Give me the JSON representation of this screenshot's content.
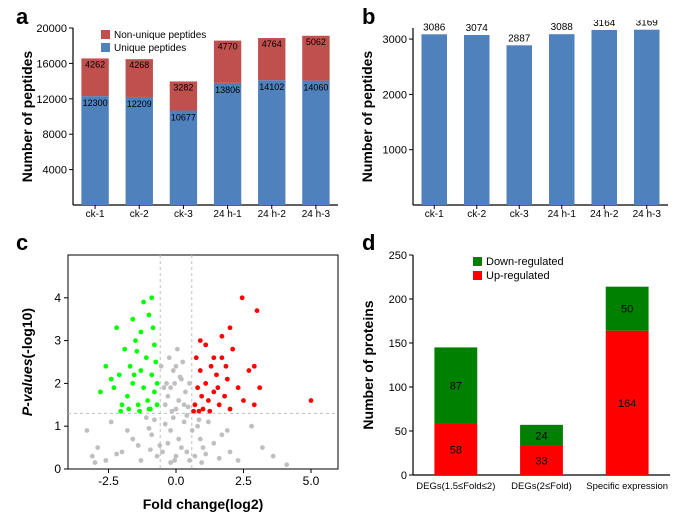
{
  "panel_labels": {
    "a": "a",
    "b": "b",
    "c": "c",
    "d": "d"
  },
  "chart_a": {
    "type": "stacked-bar",
    "title": "",
    "ylabel": "Number of peptides",
    "categories": [
      "ck-1",
      "ck-2",
      "ck-3",
      "24 h-1",
      "24 h-2",
      "24 h-3"
    ],
    "series": [
      {
        "name": "Unique peptides",
        "values": [
          12300,
          12209,
          10677,
          13806,
          14102,
          14060
        ],
        "color": "#4f81bd"
      },
      {
        "name": "Non-unique peptides",
        "values": [
          4262,
          4268,
          3282,
          4770,
          4764,
          5062
        ],
        "color": "#c0504d"
      }
    ],
    "legend_order": [
      "Non-unique peptides",
      "Unique peptides"
    ],
    "bar_value_labels": {
      "lower": [
        "12300",
        "12209",
        "10677",
        "13806",
        "14102",
        "14060"
      ],
      "upper": [
        "4262",
        "4268",
        "3282",
        "4770",
        "4764",
        "5062"
      ]
    },
    "ylim": [
      0,
      20000
    ],
    "yticks": [
      4000,
      8000,
      12000,
      16000,
      20000
    ],
    "axis_color": "#000000",
    "tick_fontsize": 11,
    "label_fontsize": 14
  },
  "chart_b": {
    "type": "bar",
    "ylabel": "Number of peptides",
    "categories": [
      "ck-1",
      "ck-2",
      "ck-3",
      "24 h-1",
      "24 h-2",
      "24 h-3"
    ],
    "values": [
      3086,
      3074,
      2887,
      3088,
      3164,
      3169
    ],
    "bar_color": "#4f81bd",
    "value_labels": [
      "3086",
      "3074",
      "2887",
      "3088",
      "3164",
      "3169"
    ],
    "ylim": [
      0,
      3200
    ],
    "yticks": [
      1000,
      2000,
      3000
    ],
    "axis_color": "#000000",
    "tick_fontsize": 11,
    "label_fontsize": 14
  },
  "chart_c": {
    "type": "scatter",
    "xlabel": "Fold change(log2)",
    "ylabel": "P-values(-log10)",
    "ylabel_italic_part": "P-values",
    "xlim": [
      -4,
      6
    ],
    "xticks": [
      -2.5,
      0.0,
      2.5,
      5.0
    ],
    "ylim": [
      0,
      5
    ],
    "yticks": [
      0,
      1,
      2,
      3,
      4
    ],
    "hline_y": 1.3,
    "vlines_x": [
      -0.585,
      0.585
    ],
    "guide_color": "#bfbfbf",
    "point_colors": {
      "ns": "#bfbfbf",
      "down": "#00ff00",
      "up": "#ff0000"
    },
    "points_ns": [
      [
        -3.1,
        0.3
      ],
      [
        -2.9,
        0.5
      ],
      [
        -3.3,
        0.9
      ],
      [
        -2.4,
        1.1
      ],
      [
        -2.0,
        0.4
      ],
      [
        -1.6,
        0.7
      ],
      [
        -1.3,
        0.2
      ],
      [
        -1.1,
        1.2
      ],
      [
        -0.9,
        0.8
      ],
      [
        -0.7,
        0.3
      ],
      [
        -0.5,
        0.4
      ],
      [
        -0.3,
        0.6
      ],
      [
        -0.2,
        0.9
      ],
      [
        -0.1,
        1.2
      ],
      [
        0.0,
        0.3
      ],
      [
        0.1,
        0.7
      ],
      [
        0.2,
        0.5
      ],
      [
        0.3,
        1.1
      ],
      [
        0.4,
        0.4
      ],
      [
        0.5,
        0.2
      ],
      [
        0.6,
        0.9
      ],
      [
        0.7,
        0.3
      ],
      [
        0.8,
        1.0
      ],
      [
        0.9,
        0.7
      ],
      [
        1.0,
        0.5
      ],
      [
        1.2,
        1.1
      ],
      [
        1.4,
        0.6
      ],
      [
        1.7,
        0.8
      ],
      [
        2.0,
        0.4
      ],
      [
        2.3,
        0.2
      ],
      [
        2.8,
        1.0
      ],
      [
        3.2,
        0.5
      ],
      [
        -0.4,
        1.5
      ],
      [
        -0.3,
        1.7
      ],
      [
        -0.2,
        1.9
      ],
      [
        0.0,
        1.4
      ],
      [
        0.1,
        1.6
      ],
      [
        0.2,
        2.1
      ],
      [
        0.3,
        1.5
      ],
      [
        -0.1,
        2.3
      ],
      [
        -0.35,
        2.0
      ],
      [
        0.35,
        1.8
      ],
      [
        0.25,
        2.5
      ],
      [
        -0.25,
        2.6
      ],
      [
        0.05,
        2.8
      ],
      [
        -0.15,
        1.35
      ],
      [
        0.15,
        2.15
      ],
      [
        0.45,
        1.45
      ],
      [
        -0.45,
        1.9
      ],
      [
        -0.55,
        2.4
      ],
      [
        0.5,
        2.0
      ],
      [
        -2.2,
        0.35
      ],
      [
        -1.8,
        0.9
      ],
      [
        -1.4,
        0.55
      ],
      [
        1.1,
        0.35
      ],
      [
        1.6,
        0.25
      ],
      [
        1.9,
        0.9
      ],
      [
        -0.6,
        0.55
      ],
      [
        -0.8,
        1.15
      ],
      [
        0.85,
        1.15
      ],
      [
        -0.05,
        0.2
      ],
      [
        -2.6,
        0.2
      ],
      [
        3.6,
        0.3
      ],
      [
        4.1,
        0.1
      ],
      [
        -3.0,
        0.15
      ],
      [
        -0.95,
        0.45
      ],
      [
        0.95,
        0.15
      ],
      [
        -1.0,
        0.95
      ],
      [
        -0.2,
        0.15
      ],
      [
        0.4,
        1.25
      ],
      [
        -0.4,
        1.05
      ],
      [
        -0.05,
        2.0
      ],
      [
        0.0,
        2.4
      ]
    ],
    "points_down": [
      [
        -0.7,
        1.5
      ],
      [
        -0.8,
        1.8
      ],
      [
        -0.9,
        2.2
      ],
      [
        -1.0,
        1.4
      ],
      [
        -1.1,
        2.6
      ],
      [
        -1.2,
        1.9
      ],
      [
        -1.3,
        2.3
      ],
      [
        -1.4,
        1.5
      ],
      [
        -1.5,
        3.0
      ],
      [
        -1.6,
        2.0
      ],
      [
        -1.7,
        2.4
      ],
      [
        -1.8,
        1.7
      ],
      [
        -1.9,
        2.8
      ],
      [
        -2.0,
        1.5
      ],
      [
        -2.1,
        2.2
      ],
      [
        -2.2,
        3.3
      ],
      [
        -2.3,
        1.9
      ],
      [
        -2.4,
        2.1
      ],
      [
        -1.0,
        3.6
      ],
      [
        -1.3,
        3.2
      ],
      [
        -0.8,
        2.9
      ],
      [
        -1.6,
        3.5
      ],
      [
        -0.9,
        4.0
      ],
      [
        -1.2,
        3.9
      ],
      [
        -2.6,
        2.4
      ],
      [
        -2.8,
        1.8
      ],
      [
        -0.7,
        2.0
      ],
      [
        -0.75,
        2.5
      ],
      [
        -1.05,
        1.6
      ],
      [
        -1.35,
        1.35
      ],
      [
        -0.85,
        3.3
      ],
      [
        -1.45,
        2.75
      ],
      [
        -1.75,
        1.4
      ],
      [
        -2.05,
        1.35
      ],
      [
        -0.95,
        1.4
      ],
      [
        -1.55,
        2.2
      ]
    ],
    "points_up": [
      [
        0.7,
        1.5
      ],
      [
        0.8,
        1.9
      ],
      [
        0.9,
        2.3
      ],
      [
        1.0,
        1.4
      ],
      [
        1.1,
        2.0
      ],
      [
        1.2,
        1.6
      ],
      [
        1.3,
        2.4
      ],
      [
        1.4,
        1.8
      ],
      [
        1.5,
        2.2
      ],
      [
        1.6,
        1.5
      ],
      [
        1.7,
        2.6
      ],
      [
        1.8,
        1.7
      ],
      [
        1.9,
        2.1
      ],
      [
        2.0,
        1.4
      ],
      [
        2.1,
        2.8
      ],
      [
        2.3,
        1.9
      ],
      [
        2.5,
        1.6
      ],
      [
        2.7,
        2.3
      ],
      [
        2.9,
        1.5
      ],
      [
        3.1,
        1.9
      ],
      [
        0.75,
        2.6
      ],
      [
        0.9,
        3.0
      ],
      [
        1.1,
        2.9
      ],
      [
        1.4,
        2.6
      ],
      [
        1.7,
        3.1
      ],
      [
        2.0,
        3.3
      ],
      [
        2.9,
        2.4
      ],
      [
        2.45,
        4.0
      ],
      [
        3.0,
        3.7
      ],
      [
        5.0,
        1.6
      ],
      [
        0.65,
        1.35
      ],
      [
        0.85,
        1.35
      ],
      [
        1.25,
        1.35
      ],
      [
        1.55,
        1.9
      ],
      [
        1.85,
        2.4
      ],
      [
        0.95,
        1.7
      ]
    ]
  },
  "chart_d": {
    "type": "stacked-bar",
    "ylabel": "Number of proteins",
    "categories": [
      "DEGs(1.5≤Fold≤2)",
      "DEGs(2≤Fold)",
      "Specific expression"
    ],
    "series": [
      {
        "name": "Up-regulated",
        "values": [
          58,
          33,
          164
        ],
        "color": "#ff0000"
      },
      {
        "name": "Down-regulated",
        "values": [
          87,
          24,
          50
        ],
        "color": "#008000"
      }
    ],
    "legend_order": [
      "Down-regulated",
      "Up-regulated"
    ],
    "bar_value_labels": {
      "lower": [
        "58",
        "33",
        "164"
      ],
      "upper": [
        "87",
        "24",
        "50"
      ]
    },
    "ylim": [
      0,
      250
    ],
    "yticks": [
      0,
      50,
      100,
      150,
      200,
      250
    ],
    "axis_color": "#000000",
    "label_fontsize": 14
  }
}
